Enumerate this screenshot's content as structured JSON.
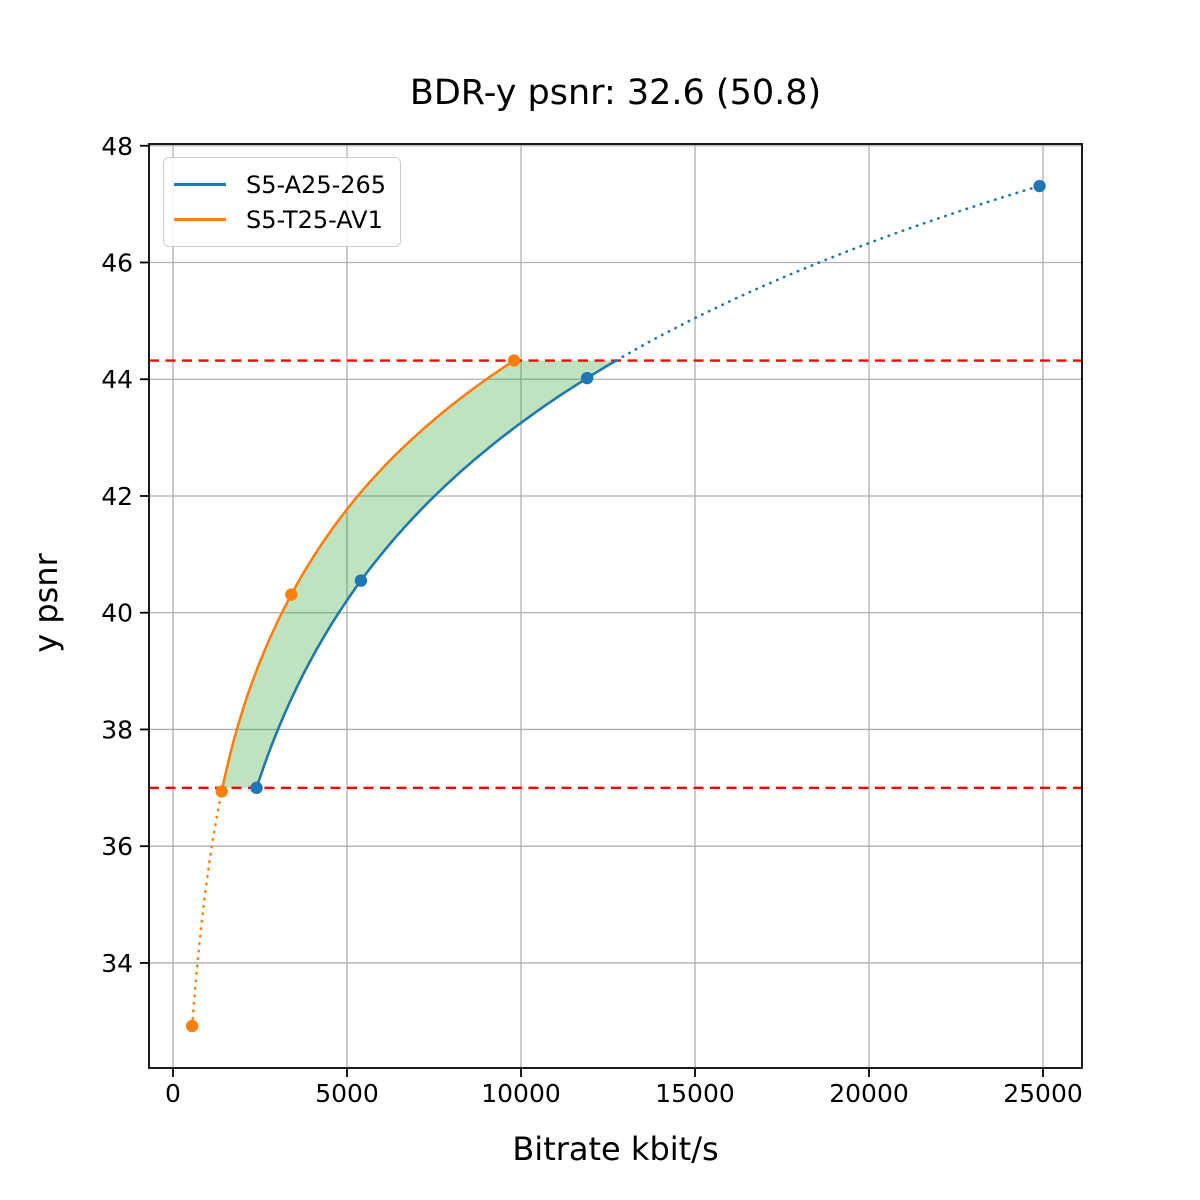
{
  "title": "BDR-y psnr: 32.6 (50.8)",
  "x_axis": {
    "label": "Bitrate kbit/s",
    "tick_labels": [
      "0",
      "5000",
      "10000",
      "15000",
      "20000",
      "25000"
    ]
  },
  "y_axis": {
    "label": "y psnr",
    "tick_labels": [
      "34",
      "36",
      "38",
      "40",
      "42",
      "44",
      "46",
      "48"
    ]
  },
  "legend": {
    "items": [
      {
        "label": "S5-A25-265",
        "color": "#1f77b4"
      },
      {
        "label": "S5-T25-AV1",
        "color": "#ff7f0e"
      }
    ]
  },
  "chart_data": {
    "type": "line",
    "title": "BDR-y psnr: 32.6 (50.8)",
    "xlabel": "Bitrate kbit/s",
    "ylabel": "y psnr",
    "xlim": [
      -690,
      26120
    ],
    "ylim": [
      32.2,
      48.03
    ],
    "xticks": [
      0,
      5000,
      10000,
      15000,
      20000,
      25000
    ],
    "yticks": [
      34,
      36,
      38,
      40,
      42,
      44,
      46,
      48
    ],
    "grid": true,
    "grid_color": "#b0b0b0",
    "legend_position": "upper left",
    "interpolation": "cubic-in-log-bitrate",
    "series": [
      {
        "name": "S5-A25-265",
        "color": "#1f77b4",
        "marker": "circle",
        "line_style": "solid inside overlap band, dotted outside",
        "points": [
          [
            2400,
            37.0
          ],
          [
            5400,
            40.55
          ],
          [
            11900,
            44.02
          ],
          [
            24900,
            47.31
          ]
        ]
      },
      {
        "name": "S5-T25-AV1",
        "color": "#ff7f0e",
        "marker": "circle",
        "line_style": "solid inside overlap band, dotted outside",
        "points": [
          [
            550,
            32.92
          ],
          [
            1400,
            36.94
          ],
          [
            3400,
            40.31
          ],
          [
            9800,
            44.32
          ]
        ]
      }
    ],
    "overlap_band": {
      "lower_psnr": 37.0,
      "upper_psnr": 44.32,
      "bound_line_color": "#ff0000",
      "bound_line_style": "dashed",
      "fill_color": "rgba(44,160,44,0.30)"
    },
    "bdr_headline_value": "32.6",
    "bdr_secondary_value": "50.8"
  }
}
